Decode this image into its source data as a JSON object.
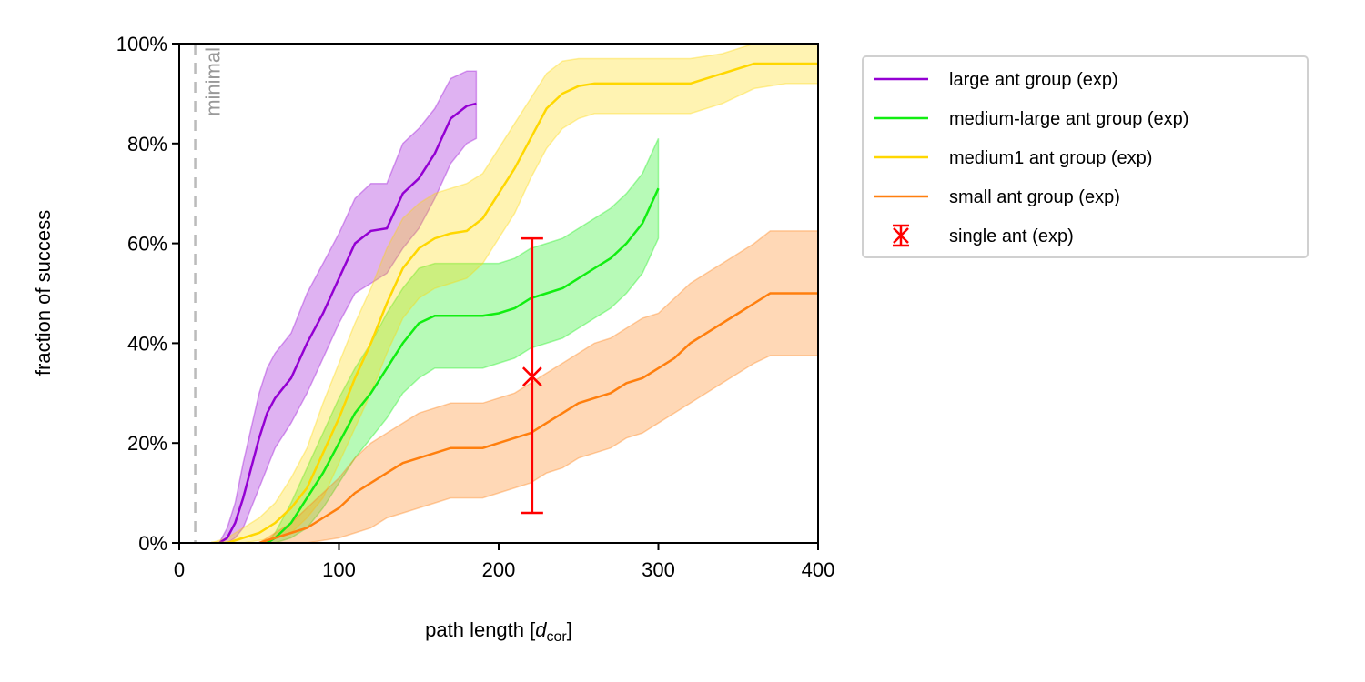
{
  "chart_data": {
    "type": "line",
    "xlabel_main": "path length [",
    "xlabel_italic": "d",
    "xlabel_sub": "cor",
    "xlabel_end": "]",
    "ylabel": "fraction of success",
    "xlim": [
      0,
      400
    ],
    "ylim": [
      0,
      1
    ],
    "x_ticks": [
      0,
      100,
      200,
      300,
      400
    ],
    "x_tick_labels": [
      "0",
      "100",
      "200",
      "300",
      "400"
    ],
    "y_ticks": [
      0,
      0.2,
      0.4,
      0.6,
      0.8,
      1.0
    ],
    "y_tick_labels": [
      "0%",
      "20%",
      "40%",
      "60%",
      "80%",
      "100%"
    ],
    "grid": false,
    "legend_position": "outside-right-top",
    "reference_line": {
      "x": 10,
      "label": "minimal",
      "color": "#bbbbbb"
    },
    "series": [
      {
        "name": "large ant group (exp)",
        "color": "#9400d3",
        "x": [
          25,
          30,
          35,
          40,
          45,
          50,
          55,
          60,
          70,
          80,
          90,
          100,
          110,
          120,
          130,
          140,
          150,
          160,
          170,
          180,
          186
        ],
        "y": [
          0,
          0.01,
          0.04,
          0.09,
          0.15,
          0.21,
          0.26,
          0.29,
          0.33,
          0.4,
          0.46,
          0.53,
          0.6,
          0.625,
          0.63,
          0.7,
          0.73,
          0.78,
          0.85,
          0.875,
          0.88
        ],
        "lower": [
          0,
          0,
          0.01,
          0.03,
          0.07,
          0.11,
          0.15,
          0.19,
          0.24,
          0.3,
          0.37,
          0.44,
          0.5,
          0.52,
          0.54,
          0.59,
          0.63,
          0.69,
          0.76,
          0.8,
          0.81
        ],
        "upper": [
          0,
          0.03,
          0.08,
          0.16,
          0.23,
          0.3,
          0.35,
          0.38,
          0.42,
          0.5,
          0.56,
          0.62,
          0.69,
          0.72,
          0.72,
          0.8,
          0.83,
          0.87,
          0.93,
          0.945,
          0.945
        ]
      },
      {
        "name": "medium-large ant group (exp)",
        "color": "#11ee11",
        "x": [
          55,
          60,
          70,
          80,
          90,
          100,
          110,
          120,
          130,
          140,
          150,
          160,
          170,
          180,
          190,
          200,
          210,
          220,
          230,
          240,
          250,
          260,
          270,
          280,
          290,
          300
        ],
        "y": [
          0,
          0.01,
          0.04,
          0.09,
          0.14,
          0.2,
          0.26,
          0.3,
          0.35,
          0.4,
          0.44,
          0.455,
          0.455,
          0.455,
          0.455,
          0.46,
          0.47,
          0.49,
          0.5,
          0.51,
          0.53,
          0.55,
          0.57,
          0.6,
          0.64,
          0.71
        ],
        "lower": [
          0,
          0,
          0.01,
          0.03,
          0.07,
          0.12,
          0.17,
          0.21,
          0.25,
          0.3,
          0.33,
          0.35,
          0.35,
          0.35,
          0.35,
          0.36,
          0.37,
          0.39,
          0.4,
          0.41,
          0.43,
          0.45,
          0.47,
          0.5,
          0.54,
          0.61
        ],
        "upper": [
          0,
          0.02,
          0.08,
          0.15,
          0.22,
          0.29,
          0.35,
          0.4,
          0.46,
          0.51,
          0.55,
          0.56,
          0.56,
          0.56,
          0.56,
          0.56,
          0.57,
          0.59,
          0.6,
          0.61,
          0.63,
          0.65,
          0.67,
          0.7,
          0.74,
          0.81
        ]
      },
      {
        "name": "medium1 ant group (exp)",
        "color": "#ffd700",
        "x": [
          20,
          30,
          40,
          50,
          60,
          70,
          80,
          90,
          100,
          110,
          120,
          130,
          140,
          150,
          160,
          170,
          180,
          190,
          200,
          210,
          220,
          230,
          240,
          250,
          260,
          280,
          300,
          320,
          340,
          360,
          380,
          400
        ],
        "y": [
          0,
          0,
          0.01,
          0.02,
          0.04,
          0.07,
          0.11,
          0.18,
          0.25,
          0.33,
          0.4,
          0.48,
          0.55,
          0.59,
          0.61,
          0.62,
          0.625,
          0.65,
          0.7,
          0.75,
          0.81,
          0.87,
          0.9,
          0.915,
          0.92,
          0.92,
          0.92,
          0.92,
          0.94,
          0.96,
          0.96,
          0.96
        ],
        "lower": [
          0,
          0,
          0,
          0.005,
          0.01,
          0.02,
          0.05,
          0.09,
          0.16,
          0.23,
          0.3,
          0.38,
          0.45,
          0.49,
          0.51,
          0.52,
          0.53,
          0.56,
          0.61,
          0.66,
          0.73,
          0.79,
          0.83,
          0.85,
          0.86,
          0.86,
          0.86,
          0.86,
          0.88,
          0.91,
          0.92,
          0.92
        ],
        "upper": [
          0,
          0.01,
          0.03,
          0.05,
          0.08,
          0.13,
          0.19,
          0.28,
          0.36,
          0.44,
          0.51,
          0.59,
          0.65,
          0.68,
          0.7,
          0.71,
          0.72,
          0.74,
          0.79,
          0.84,
          0.89,
          0.94,
          0.965,
          0.97,
          0.97,
          0.97,
          0.97,
          0.97,
          0.98,
          1.0,
          1.0,
          1.0
        ]
      },
      {
        "name": "small ant group (exp)",
        "color": "#ff7f0e",
        "x": [
          50,
          60,
          70,
          80,
          90,
          100,
          110,
          120,
          130,
          140,
          150,
          160,
          170,
          180,
          190,
          200,
          210,
          220,
          230,
          240,
          250,
          260,
          270,
          280,
          290,
          300,
          310,
          320,
          330,
          340,
          350,
          360,
          370,
          380,
          390,
          400
        ],
        "y": [
          0,
          0.01,
          0.02,
          0.03,
          0.05,
          0.07,
          0.1,
          0.12,
          0.14,
          0.16,
          0.17,
          0.18,
          0.19,
          0.19,
          0.19,
          0.2,
          0.21,
          0.22,
          0.24,
          0.26,
          0.28,
          0.29,
          0.3,
          0.32,
          0.33,
          0.35,
          0.37,
          0.4,
          0.42,
          0.44,
          0.46,
          0.48,
          0.5,
          0.5,
          0.5,
          0.5
        ],
        "lower": [
          0,
          0,
          0,
          0,
          0.005,
          0.01,
          0.02,
          0.03,
          0.05,
          0.06,
          0.07,
          0.08,
          0.09,
          0.09,
          0.09,
          0.1,
          0.11,
          0.12,
          0.14,
          0.15,
          0.17,
          0.18,
          0.19,
          0.21,
          0.22,
          0.24,
          0.26,
          0.28,
          0.3,
          0.32,
          0.34,
          0.36,
          0.375,
          0.375,
          0.375,
          0.375
        ],
        "upper": [
          0,
          0.02,
          0.04,
          0.07,
          0.1,
          0.13,
          0.17,
          0.2,
          0.22,
          0.24,
          0.26,
          0.27,
          0.28,
          0.28,
          0.28,
          0.29,
          0.3,
          0.32,
          0.34,
          0.36,
          0.38,
          0.4,
          0.41,
          0.43,
          0.45,
          0.46,
          0.49,
          0.52,
          0.54,
          0.56,
          0.58,
          0.6,
          0.625,
          0.625,
          0.625,
          0.625
        ]
      }
    ],
    "errorbar": {
      "name": "single ant (exp)",
      "color": "#ff0000",
      "x": 221,
      "y": 0.333,
      "lower": 0.06,
      "upper": 0.61,
      "marker": "x"
    }
  }
}
